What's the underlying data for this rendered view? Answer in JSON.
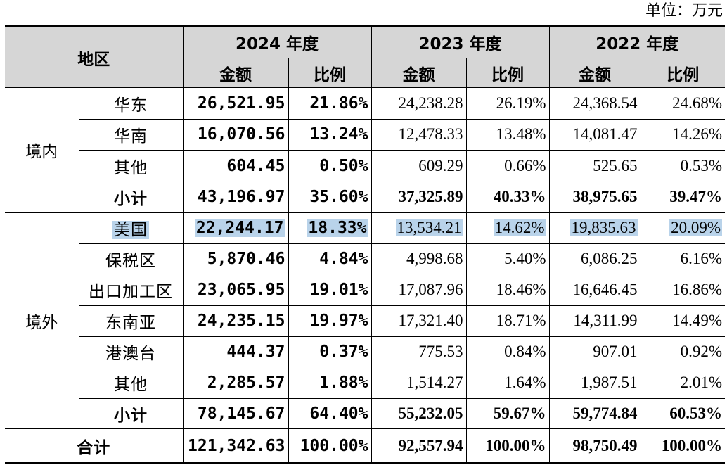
{
  "unit_label": "单位：万元",
  "header": {
    "region": "地区",
    "years": [
      "2024 年度",
      "2023 年度",
      "2022 年度"
    ],
    "amount": "金额",
    "ratio": "比例"
  },
  "groups": [
    {
      "name": "境内",
      "rows": [
        {
          "label": "华东",
          "v": [
            "26,521.95",
            "21.86%",
            "24,238.28",
            "26.19%",
            "24,368.54",
            "24.68%"
          ]
        },
        {
          "label": "华南",
          "v": [
            "16,070.56",
            "13.24%",
            "12,478.33",
            "13.48%",
            "14,081.47",
            "14.26%"
          ]
        },
        {
          "label": "其他",
          "v": [
            "604.45",
            "0.50%",
            "609.29",
            "0.66%",
            "525.65",
            "0.53%"
          ]
        },
        {
          "label": "小计",
          "v": [
            "43,196.97",
            "35.60%",
            "37,325.89",
            "40.33%",
            "38,975.65",
            "39.47%"
          ]
        }
      ]
    },
    {
      "name": "境外",
      "rows": [
        {
          "label": "美国",
          "v": [
            "22,244.17",
            "18.33%",
            "13,534.21",
            "14.62%",
            "19,835.63",
            "20.09%"
          ]
        },
        {
          "label": "保税区",
          "v": [
            "5,870.46",
            "4.84%",
            "4,998.68",
            "5.40%",
            "6,086.25",
            "6.16%"
          ]
        },
        {
          "label": "出口加工区",
          "v": [
            "23,065.95",
            "19.01%",
            "17,087.96",
            "18.46%",
            "16,646.45",
            "16.86%"
          ]
        },
        {
          "label": "东南亚",
          "v": [
            "24,235.15",
            "19.97%",
            "17,321.40",
            "18.71%",
            "14,311.99",
            "14.49%"
          ]
        },
        {
          "label": "港澳台",
          "v": [
            "444.37",
            "0.37%",
            "775.53",
            "0.84%",
            "907.01",
            "0.92%"
          ]
        },
        {
          "label": "其他",
          "v": [
            "2,285.57",
            "1.88%",
            "1,514.27",
            "1.64%",
            "1,987.51",
            "2.01%"
          ]
        },
        {
          "label": "小计",
          "v": [
            "78,145.67",
            "64.40%",
            "55,232.05",
            "59.67%",
            "59,774.84",
            "60.53%"
          ]
        }
      ]
    }
  ],
  "total": {
    "label": "合计",
    "v": [
      "121,342.63",
      "100.00%",
      "92,557.94",
      "100.00%",
      "98,750.49",
      "100.00%"
    ]
  },
  "colors": {
    "header_bg": "#d6d6d6",
    "highlight": "#b9d3ea"
  }
}
